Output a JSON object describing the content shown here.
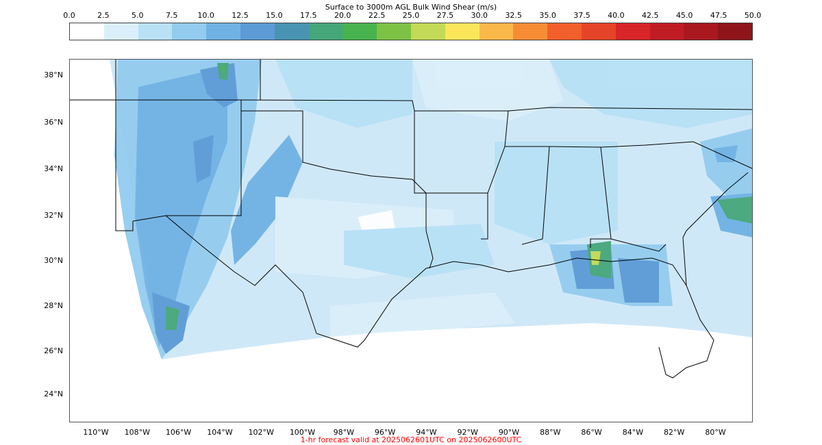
{
  "figure": {
    "colorbar_title": "Surface to 3000m AGL Bulk Wind Shear (m/s)",
    "footer_text": "1-hr forecast valid at 2025062601UTC on 2025062600UTC",
    "footer_color": "#ff0000"
  },
  "colorbar": {
    "ticks": [
      "0.0",
      "2.5",
      "5.0",
      "7.5",
      "10.0",
      "12.5",
      "15.0",
      "17.5",
      "20.0",
      "22.5",
      "25.0",
      "27.5",
      "30.0",
      "32.5",
      "35.0",
      "37.5",
      "40.0",
      "42.5",
      "45.0",
      "47.5",
      "50.0"
    ],
    "colors": [
      "#ffffff",
      "#dbeffb",
      "#b8e1f6",
      "#93ccef",
      "#70b2e3",
      "#5c9bd6",
      "#4894b2",
      "#45a67a",
      "#47b34f",
      "#7dc245",
      "#c2da55",
      "#fbe65a",
      "#fbb84a",
      "#f68d35",
      "#f15f2a",
      "#e54428",
      "#d72528",
      "#c01c25",
      "#a9181f",
      "#8e141a"
    ]
  },
  "axes": {
    "lat_labels": [
      "38°N",
      "36°N",
      "34°N",
      "32°N",
      "30°N",
      "28°N",
      "26°N",
      "24°N"
    ],
    "lon_labels": [
      "110°W",
      "108°W",
      "106°W",
      "104°W",
      "102°W",
      "100°W",
      "98°W",
      "96°W",
      "94°W",
      "92°W",
      "90°W",
      "88°W",
      "86°W",
      "84°W",
      "82°W",
      "80°W"
    ]
  },
  "chart_data": {
    "type": "heatmap",
    "title": "Surface to 3000m AGL Bulk Wind Shear (m/s)",
    "units": "m/s",
    "colorbar_range": [
      0,
      50
    ],
    "colorbar_interval": 2.5,
    "lat_range_deg_n": [
      23,
      38.5
    ],
    "lon_range_deg_w": [
      111,
      78.5
    ],
    "lat_ticks": [
      38,
      36,
      34,
      32,
      30,
      28,
      26,
      24
    ],
    "lon_ticks": [
      110,
      108,
      106,
      104,
      102,
      100,
      98,
      96,
      94,
      92,
      90,
      88,
      86,
      84,
      82,
      80
    ],
    "annotation": "1-hr forecast valid at 2025062601UTC on 2025062600UTC"
  }
}
